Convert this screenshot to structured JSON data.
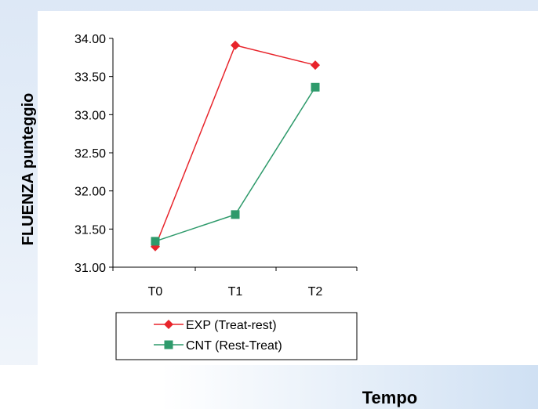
{
  "chart_data": {
    "type": "line",
    "title": "",
    "xlabel": "Tempo",
    "ylabel": "FLUENZA punteggio",
    "categories": [
      "T0",
      "T1",
      "T2"
    ],
    "ylim": [
      31.0,
      34.0
    ],
    "yticks": [
      "31.00",
      "31.50",
      "32.00",
      "32.50",
      "33.00",
      "33.50",
      "34.00"
    ],
    "ytick_values": [
      31.0,
      31.5,
      32.0,
      32.5,
      33.0,
      33.5,
      34.0
    ],
    "grid": false,
    "legend_position": "bottom",
    "series": [
      {
        "name": "EXP (Treat-rest)",
        "color": "#e8242b",
        "marker": "diamond",
        "values": [
          31.27,
          33.91,
          33.65
        ]
      },
      {
        "name": "CNT (Rest-Treat)",
        "color": "#2e9a6b",
        "marker": "square",
        "values": [
          31.34,
          31.69,
          33.36
        ]
      }
    ]
  }
}
